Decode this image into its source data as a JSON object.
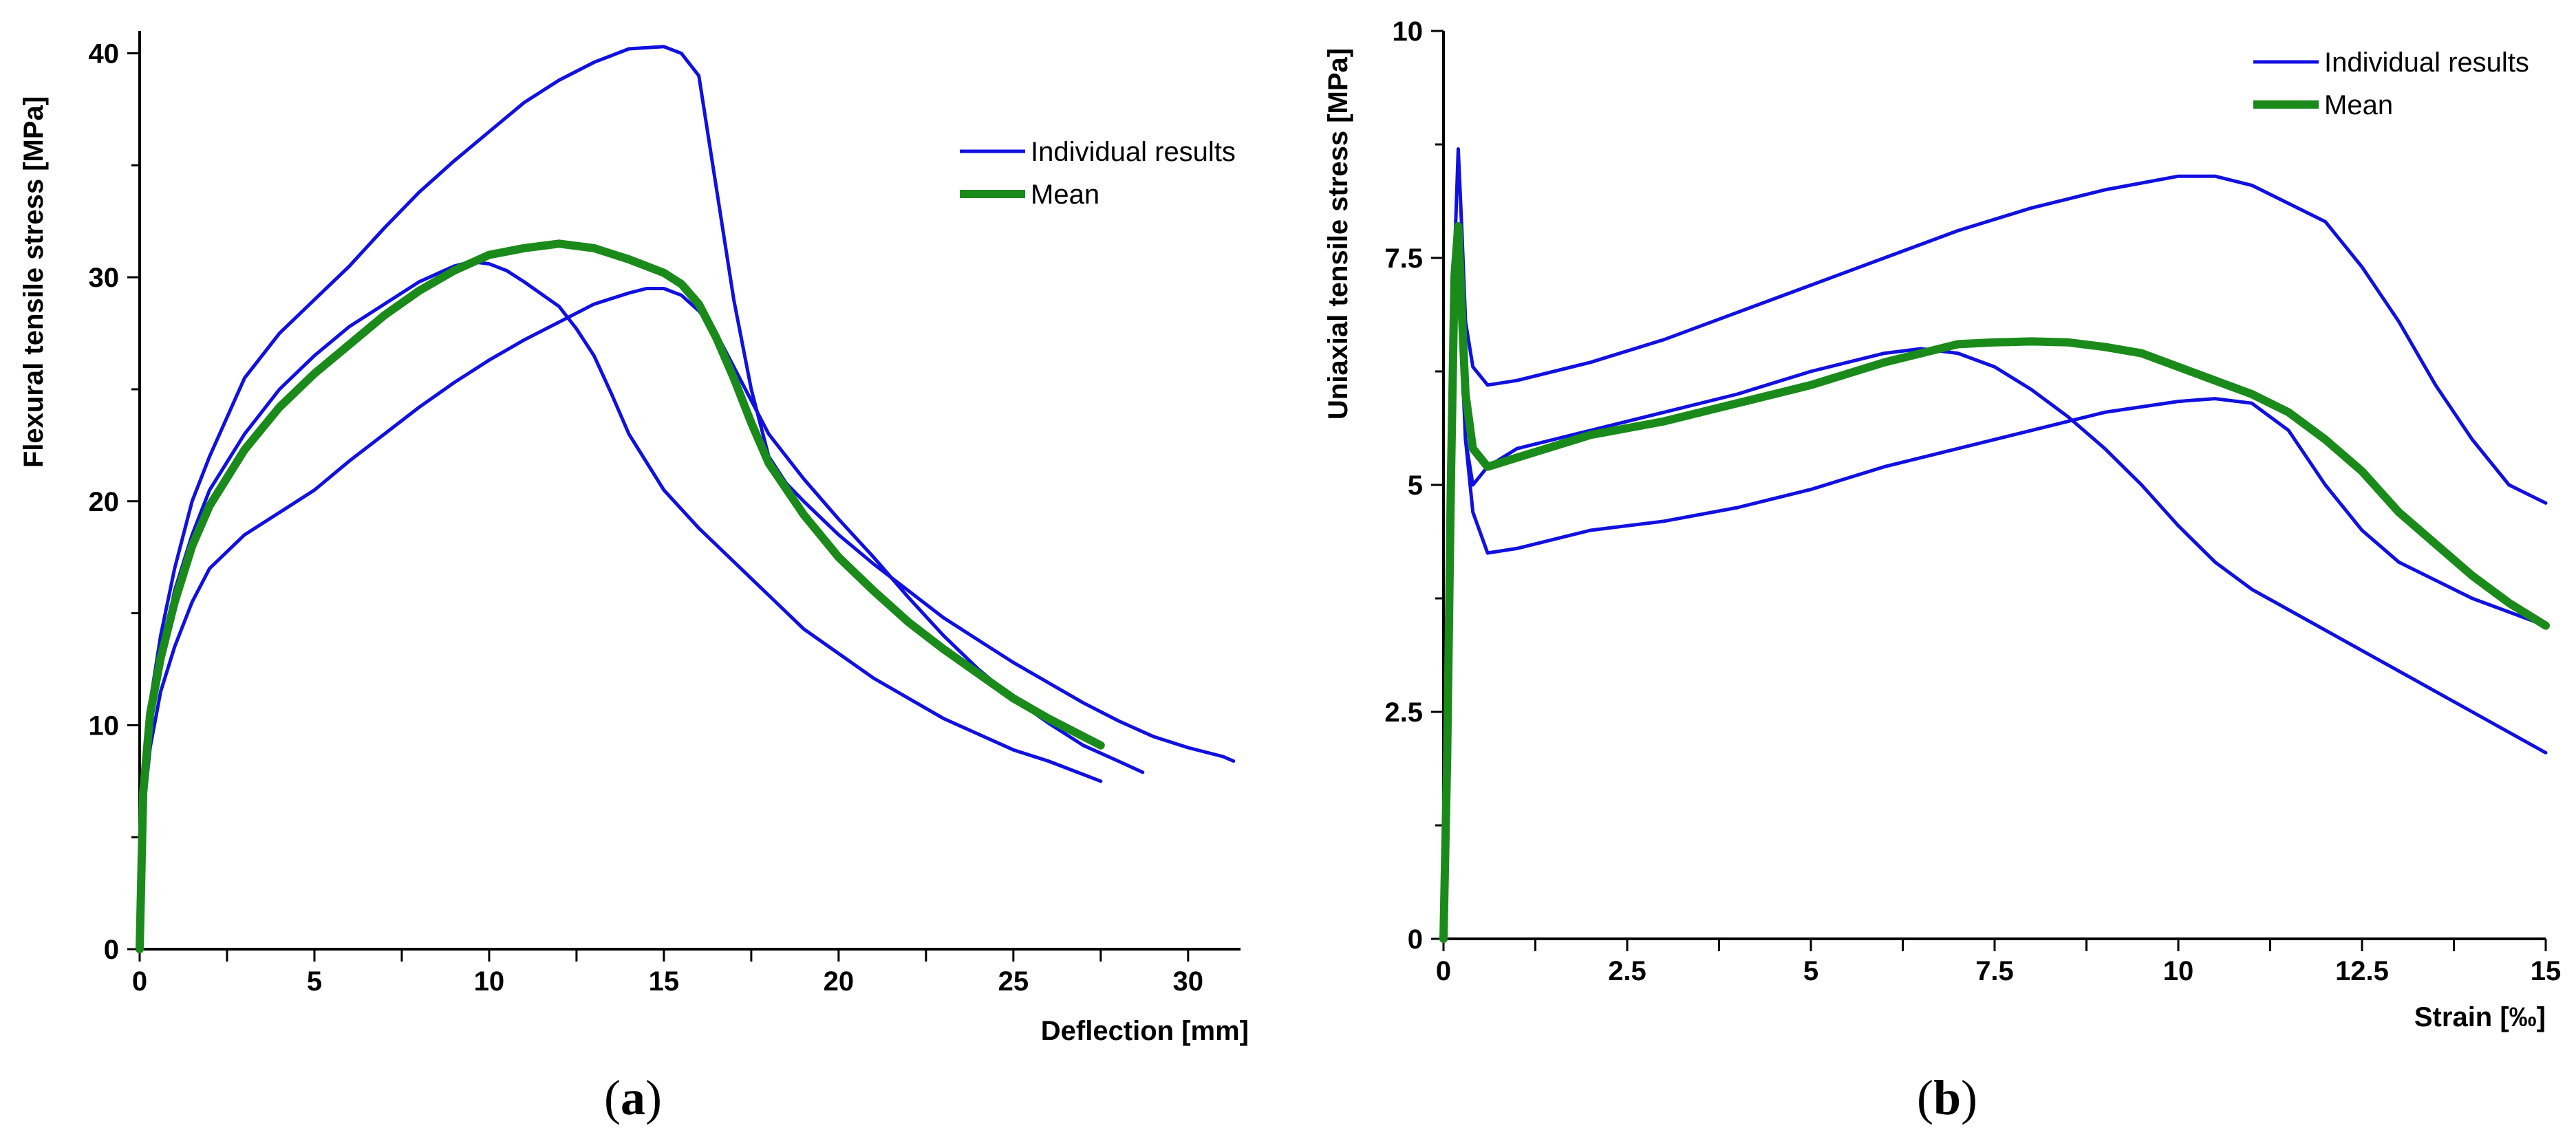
{
  "chart_data": [
    {
      "type": "line",
      "panel_label": "a",
      "xlabel": "Deflection [mm]",
      "ylabel": "Flexural tensile stress [MPa]",
      "xlim": [
        0,
        31.5
      ],
      "ylim": [
        0,
        41
      ],
      "x_ticks": [
        0,
        5,
        10,
        15,
        20,
        25,
        30
      ],
      "y_ticks": [
        0,
        10,
        20,
        30,
        40
      ],
      "legend_position": "upper-right",
      "legend": [
        "Individual results",
        "Mean"
      ],
      "colors": {
        "individual": "#1010e0",
        "mean": "#1a8a1a"
      },
      "series": [
        {
          "role": "individual",
          "x": [
            0,
            0.1,
            0.3,
            0.6,
            1,
            1.5,
            2,
            3,
            4,
            5,
            6,
            7,
            8,
            9,
            10,
            11,
            12,
            13,
            14,
            15,
            15.5,
            16,
            16.5,
            17,
            17.5,
            18,
            18.5,
            19,
            20,
            21,
            22,
            23,
            24,
            25,
            26,
            27,
            28,
            29,
            30,
            31,
            31.3
          ],
          "y": [
            0,
            7,
            11,
            14,
            17,
            20,
            22,
            25.5,
            27.5,
            29,
            30.5,
            32.2,
            33.8,
            35.2,
            36.5,
            37.8,
            38.8,
            39.6,
            40.2,
            40.3,
            40,
            39,
            34,
            29,
            25,
            22,
            20.8,
            20,
            18.5,
            17.2,
            16,
            14.8,
            13.8,
            12.8,
            11.9,
            11,
            10.2,
            9.5,
            9.0,
            8.6,
            8.4
          ]
        },
        {
          "role": "individual",
          "x": [
            0,
            0.1,
            0.3,
            0.6,
            1,
            1.5,
            2,
            3,
            4,
            5,
            6,
            7,
            8,
            9,
            9.5,
            10,
            10.5,
            11,
            12,
            12.5,
            13,
            13.5,
            14,
            15,
            16,
            17,
            18,
            19,
            20,
            21,
            22,
            23,
            24,
            25,
            26,
            27,
            27.5
          ],
          "y": [
            0,
            7,
            10,
            13,
            16,
            18.5,
            20.5,
            23,
            25,
            26.5,
            27.8,
            28.8,
            29.8,
            30.5,
            30.7,
            30.6,
            30.3,
            29.8,
            28.7,
            27.7,
            26.5,
            24.8,
            23,
            20.5,
            18.8,
            17.3,
            15.8,
            14.3,
            13.2,
            12.1,
            11.2,
            10.3,
            9.6,
            8.9,
            8.4,
            7.8,
            7.5
          ]
        },
        {
          "role": "individual",
          "x": [
            0,
            0.1,
            0.3,
            0.6,
            1,
            1.5,
            2,
            3,
            4,
            5,
            6,
            7,
            8,
            9,
            10,
            11,
            12,
            13,
            14,
            14.5,
            15,
            15.5,
            16,
            16.5,
            17,
            17.5,
            18,
            19,
            20,
            21,
            22,
            23,
            24,
            25,
            26,
            27,
            28,
            28.7
          ],
          "y": [
            0,
            6,
            9,
            11.5,
            13.5,
            15.5,
            17,
            18.5,
            19.5,
            20.5,
            21.8,
            23,
            24.2,
            25.3,
            26.3,
            27.2,
            28,
            28.8,
            29.3,
            29.5,
            29.5,
            29.2,
            28.5,
            27.5,
            26,
            24.5,
            23,
            21,
            19.2,
            17.5,
            15.7,
            14,
            12.5,
            11.2,
            10.1,
            9.1,
            8.4,
            7.9
          ]
        },
        {
          "role": "mean",
          "x": [
            0,
            0.1,
            0.3,
            0.6,
            1,
            1.5,
            2,
            3,
            4,
            5,
            6,
            7,
            8,
            9,
            10,
            11,
            12,
            13,
            14,
            15,
            15.5,
            16,
            16.5,
            17,
            17.5,
            18,
            19,
            20,
            21,
            22,
            23,
            24,
            25,
            26,
            27,
            27.5
          ],
          "y": [
            0,
            7,
            10.5,
            13,
            15.5,
            18,
            19.8,
            22.3,
            24.2,
            25.7,
            27,
            28.3,
            29.4,
            30.3,
            31,
            31.3,
            31.5,
            31.3,
            30.8,
            30.2,
            29.7,
            28.8,
            27.3,
            25.5,
            23.5,
            21.7,
            19.4,
            17.5,
            16,
            14.6,
            13.4,
            12.3,
            11.2,
            10.3,
            9.5,
            9.1
          ]
        }
      ]
    },
    {
      "type": "line",
      "panel_label": "b",
      "xlabel": "Strain [‰]",
      "ylabel": "Uniaxial tensile stress [MPa]",
      "xlim": [
        0,
        15
      ],
      "ylim": [
        0,
        10
      ],
      "x_ticks": [
        0,
        2.5,
        5,
        7.5,
        10,
        12.5,
        15
      ],
      "y_ticks": [
        0,
        2.5,
        5,
        7.5,
        10
      ],
      "legend_position": "upper-right",
      "legend": [
        "Individual results",
        "Mean"
      ],
      "colors": {
        "individual": "#1010e0",
        "mean": "#1a8a1a"
      },
      "series": [
        {
          "role": "individual",
          "x": [
            0,
            0.05,
            0.1,
            0.15,
            0.2,
            0.25,
            0.3,
            0.4,
            0.6,
            1,
            2,
            3,
            4,
            5,
            6,
            7,
            8,
            9,
            10,
            10.5,
            11,
            12,
            12.5,
            13,
            13.5,
            14,
            14.5,
            15
          ],
          "y": [
            0,
            2,
            5,
            7.5,
            8.7,
            7.8,
            6.8,
            6.3,
            6.1,
            6.15,
            6.35,
            6.6,
            6.9,
            7.2,
            7.5,
            7.8,
            8.05,
            8.25,
            8.4,
            8.4,
            8.3,
            7.9,
            7.4,
            6.8,
            6.1,
            5.5,
            5.0,
            4.8
          ]
        },
        {
          "role": "individual",
          "x": [
            0,
            0.05,
            0.1,
            0.15,
            0.2,
            0.25,
            0.3,
            0.4,
            0.6,
            1,
            2,
            3,
            4,
            5,
            6,
            6.5,
            7,
            7.5,
            8,
            8.5,
            9,
            9.5,
            10,
            10.5,
            11,
            12,
            13,
            14,
            15
          ],
          "y": [
            0,
            2,
            5,
            7,
            7.6,
            6.5,
            5.5,
            5.0,
            5.2,
            5.4,
            5.6,
            5.8,
            6.0,
            6.25,
            6.45,
            6.5,
            6.45,
            6.3,
            6.05,
            5.75,
            5.4,
            5.0,
            4.55,
            4.15,
            3.85,
            3.4,
            2.95,
            2.5,
            2.05
          ]
        },
        {
          "role": "individual",
          "x": [
            0,
            0.05,
            0.1,
            0.15,
            0.2,
            0.25,
            0.3,
            0.4,
            0.6,
            1,
            2,
            3,
            4,
            5,
            6,
            7,
            8,
            9,
            10,
            10.5,
            11,
            11.5,
            12,
            12.5,
            13,
            14,
            15
          ],
          "y": [
            0,
            2,
            5,
            7,
            7.4,
            6.4,
            5.5,
            4.7,
            4.25,
            4.3,
            4.5,
            4.6,
            4.75,
            4.95,
            5.2,
            5.4,
            5.6,
            5.8,
            5.92,
            5.95,
            5.9,
            5.6,
            5.0,
            4.5,
            4.15,
            3.75,
            3.45
          ]
        },
        {
          "role": "mean",
          "x": [
            0,
            0.05,
            0.1,
            0.15,
            0.2,
            0.25,
            0.3,
            0.4,
            0.6,
            1,
            2,
            3,
            4,
            5,
            6,
            7,
            7.5,
            8,
            8.5,
            9,
            9.5,
            10,
            10.5,
            11,
            11.5,
            12,
            12.5,
            13,
            13.5,
            14,
            14.5,
            15
          ],
          "y": [
            0,
            2,
            5,
            7.3,
            7.85,
            6.9,
            6.0,
            5.4,
            5.2,
            5.3,
            5.55,
            5.7,
            5.9,
            6.1,
            6.35,
            6.55,
            6.57,
            6.58,
            6.57,
            6.52,
            6.45,
            6.3,
            6.15,
            6.0,
            5.8,
            5.5,
            5.15,
            4.7,
            4.35,
            4.0,
            3.7,
            3.45
          ]
        }
      ]
    }
  ]
}
